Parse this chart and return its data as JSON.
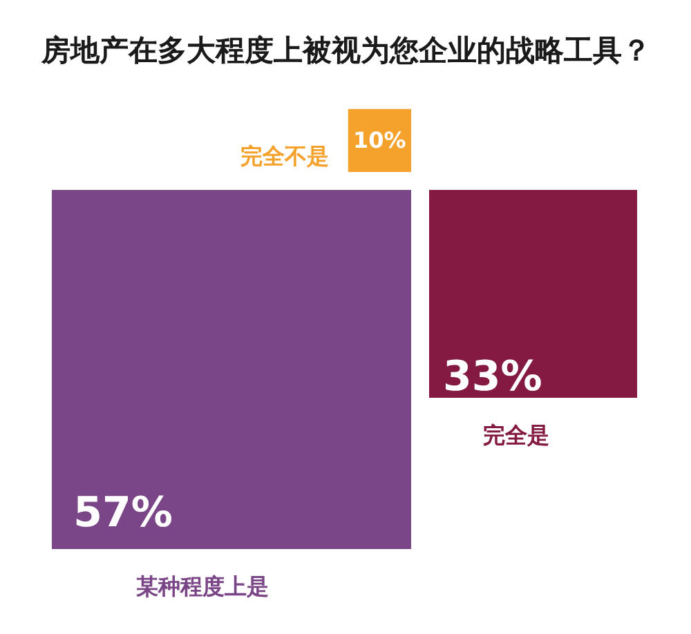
{
  "chart_data": {
    "type": "other",
    "title": "房地产在多大程度上被视为您企业的战略工具？",
    "categories": [
      "某种程度上是",
      "完全是",
      "完全不是"
    ],
    "values": [
      57,
      33,
      10
    ],
    "colors": [
      "#7a4687",
      "#841a41",
      "#f5a22d"
    ],
    "value_labels": [
      "57%",
      "33%",
      "10%"
    ]
  }
}
